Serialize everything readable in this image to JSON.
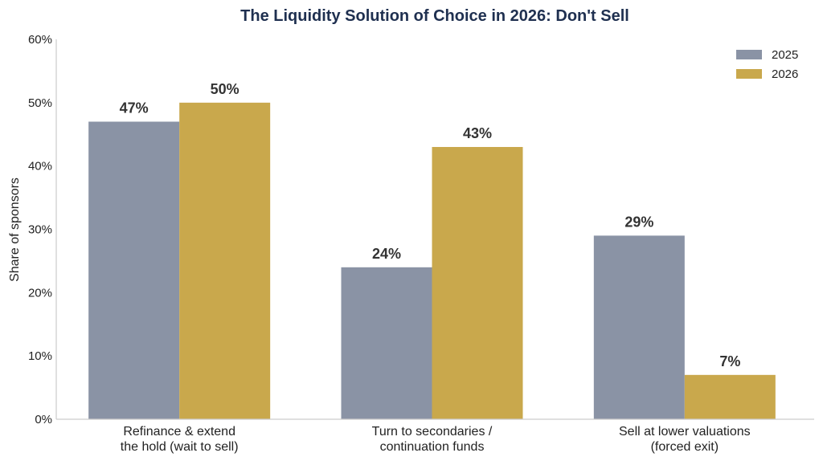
{
  "chart_data": {
    "type": "bar",
    "title": "The Liquidity Solution of Choice in 2026: Don't Sell",
    "xlabel": "",
    "ylabel": "Share of sponsors",
    "ylim": [
      0,
      60
    ],
    "yticks": [
      "0%",
      "10%",
      "20%",
      "30%",
      "40%",
      "50%",
      "60%"
    ],
    "categories": [
      [
        "Refinance & extend",
        "the hold (wait to sell)"
      ],
      [
        "Turn to secondaries /",
        "continuation funds"
      ],
      [
        "Sell at lower valuations",
        "(forced exit)"
      ]
    ],
    "series": [
      {
        "name": "2025",
        "color": "#8a93a5",
        "values": [
          47,
          24,
          29
        ],
        "labels": [
          "47%",
          "24%",
          "29%"
        ]
      },
      {
        "name": "2026",
        "color": "#c9a84c",
        "values": [
          50,
          43,
          7
        ],
        "labels": [
          "50%",
          "43%",
          "7%"
        ]
      }
    ],
    "legend": "top-right",
    "grid": false,
    "colors": {
      "title": "#1f3050",
      "axis": "#cccccc"
    }
  }
}
